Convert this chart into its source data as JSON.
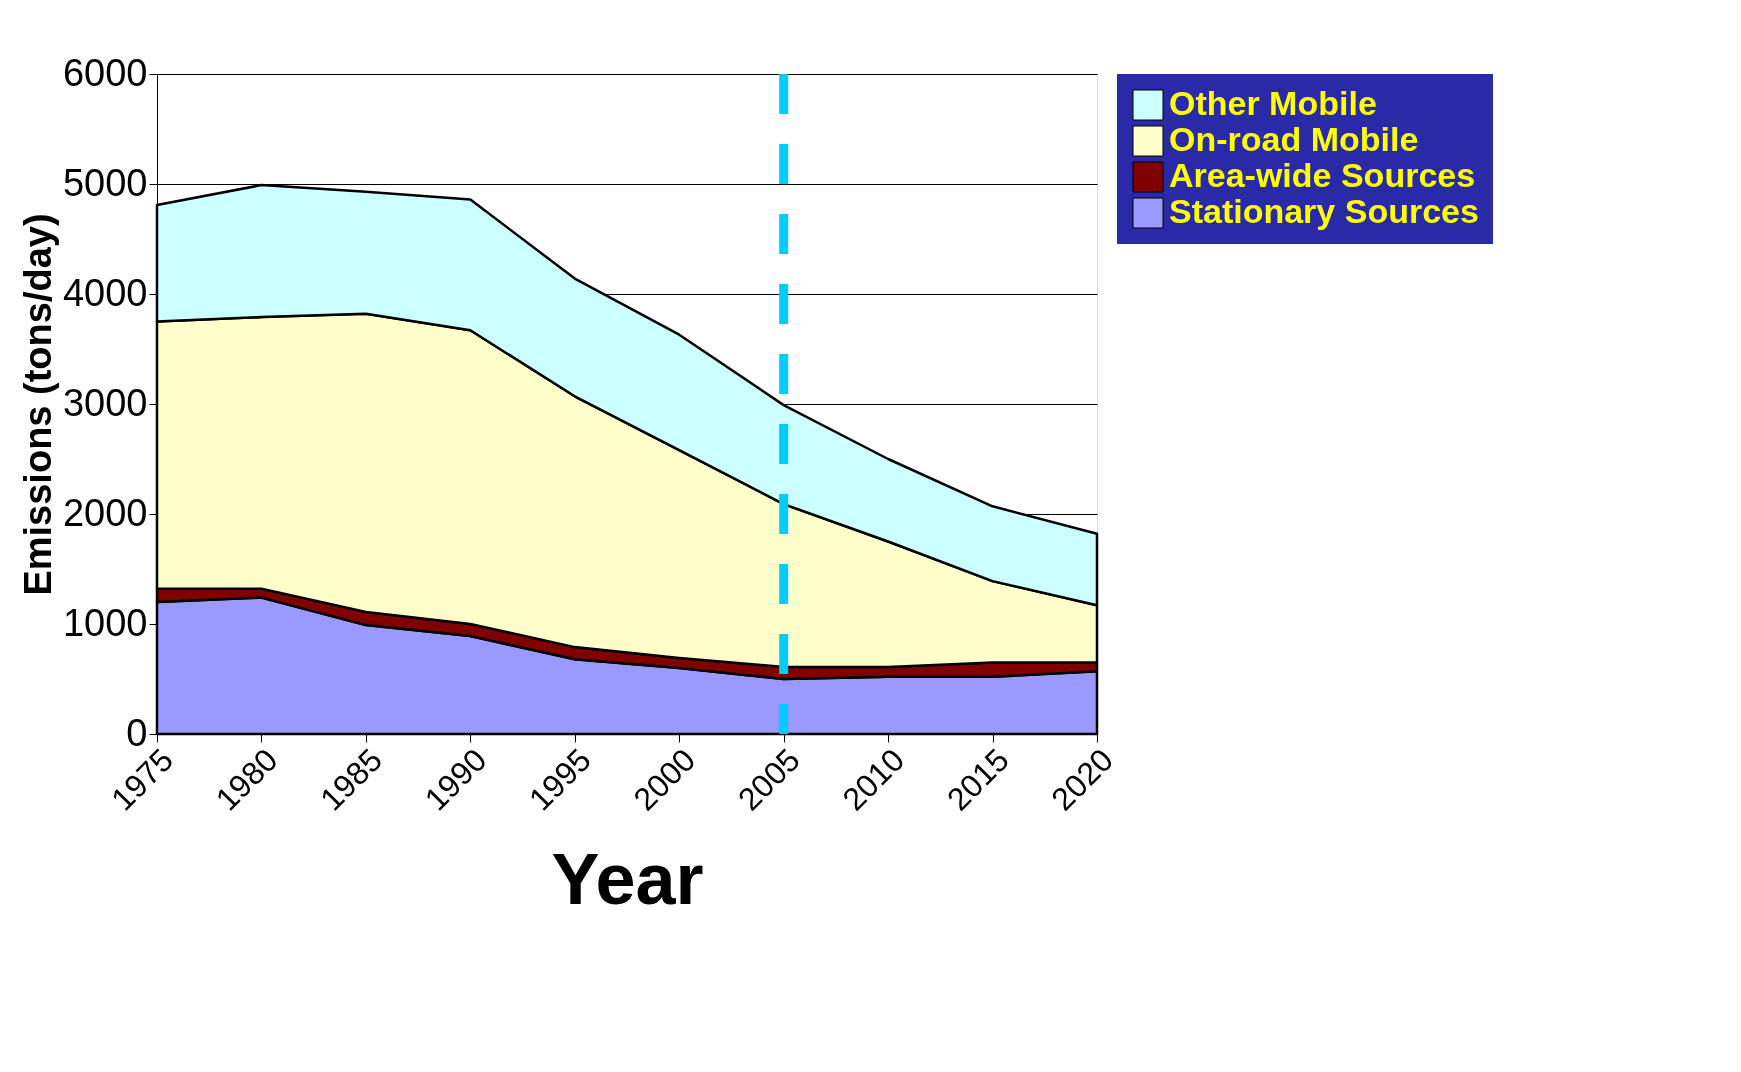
{
  "chart_data": {
    "type": "area",
    "stacked": true,
    "xlabel": "Year",
    "ylabel": "Emissions (tons/day)",
    "categories": [
      "1975",
      "1980",
      "1985",
      "1990",
      "1995",
      "2000",
      "2005",
      "2010",
      "2015",
      "2020"
    ],
    "series": [
      {
        "name": "Stationary Sources",
        "color": "#9999ff",
        "values": [
          1200,
          1240,
          990,
          890,
          680,
          600,
          500,
          520,
          520,
          570
        ]
      },
      {
        "name": "Area-wide Sources",
        "color": "#800000",
        "values": [
          120,
          80,
          120,
          110,
          110,
          90,
          110,
          90,
          130,
          80
        ]
      },
      {
        "name": "On-road Mobile",
        "color": "#ffffcc",
        "values": [
          2430,
          2470,
          2710,
          2670,
          2280,
          1890,
          1480,
          1140,
          740,
          520
        ]
      },
      {
        "name": "Other Mobile",
        "color": "#ccffff",
        "values": [
          1060,
          1200,
          1110,
          1190,
          1070,
          1050,
          900,
          750,
          680,
          650
        ]
      }
    ],
    "ylim": [
      0,
      6000
    ],
    "yticks": [
      0,
      1000,
      2000,
      3000,
      4000,
      5000,
      6000
    ],
    "grid": "y",
    "legend": "right",
    "ref_lines": [
      {
        "axis": "x",
        "value": "2005",
        "color": "#00ccff",
        "line_style": "dashed"
      }
    ]
  }
}
